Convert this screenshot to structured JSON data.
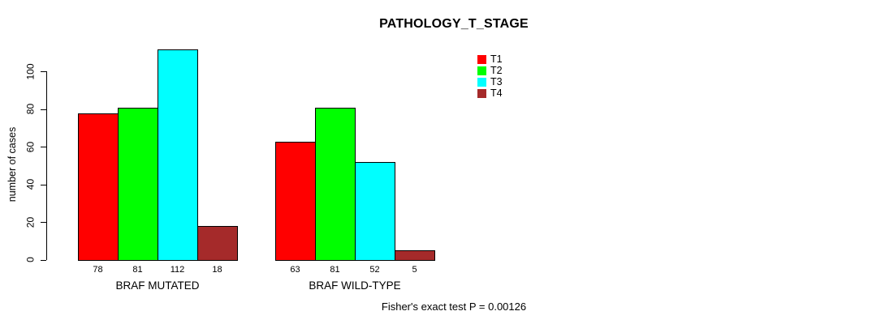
{
  "chart_data": {
    "type": "bar",
    "title": "PATHOLOGY_T_STAGE",
    "ylabel": "number of cases",
    "xlabel": "",
    "categories": [
      "BRAF MUTATED",
      "BRAF WILD-TYPE"
    ],
    "series": [
      {
        "name": "T1",
        "color": "#FF0000",
        "values": [
          78,
          63
        ]
      },
      {
        "name": "T2",
        "color": "#00FF00",
        "values": [
          81,
          81
        ]
      },
      {
        "name": "T3",
        "color": "#00FFFF",
        "values": [
          112,
          52
        ]
      },
      {
        "name": "T4",
        "color": "#A52A2A",
        "values": [
          18,
          5
        ]
      }
    ],
    "yticks": [
      0,
      20,
      40,
      60,
      80,
      100
    ],
    "ylim": [
      0,
      116
    ],
    "grid": false,
    "legend_position": "top-right",
    "bar_value_labels_shown": true,
    "axis_color": "#000000",
    "bar_border_color": "#000000"
  },
  "annotation": "Fisher's exact test P = 0.00126"
}
